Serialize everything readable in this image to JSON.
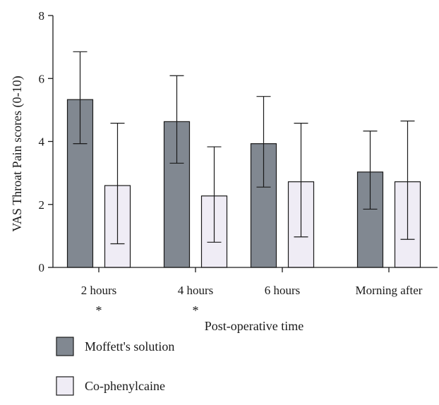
{
  "chart_data": {
    "type": "bar",
    "title": "",
    "xlabel": "Post-operative time",
    "ylabel": "VAS Throat Pain scores (0-10)",
    "ylim": [
      0,
      8
    ],
    "yticks": [
      0,
      2,
      4,
      6,
      8
    ],
    "categories": [
      "2 hours",
      "4 hours",
      "6 hours",
      "Morning after"
    ],
    "category_marks": [
      "*",
      "*",
      "",
      ""
    ],
    "series": [
      {
        "name": "Moffett's solution",
        "color": "#818891",
        "values": [
          5.33,
          4.63,
          3.93,
          3.03
        ],
        "error_low": [
          3.93,
          3.31,
          2.55,
          1.85
        ],
        "error_high": [
          6.85,
          6.09,
          5.43,
          4.33
        ]
      },
      {
        "name": "Co-phenylcaine",
        "color": "#efecf5",
        "values": [
          2.6,
          2.27,
          2.72,
          2.72
        ],
        "error_low": [
          0.75,
          0.8,
          0.97,
          0.89
        ],
        "error_high": [
          4.58,
          3.83,
          4.58,
          4.65
        ]
      }
    ],
    "grid": false,
    "legend_position": "bottom-left"
  }
}
